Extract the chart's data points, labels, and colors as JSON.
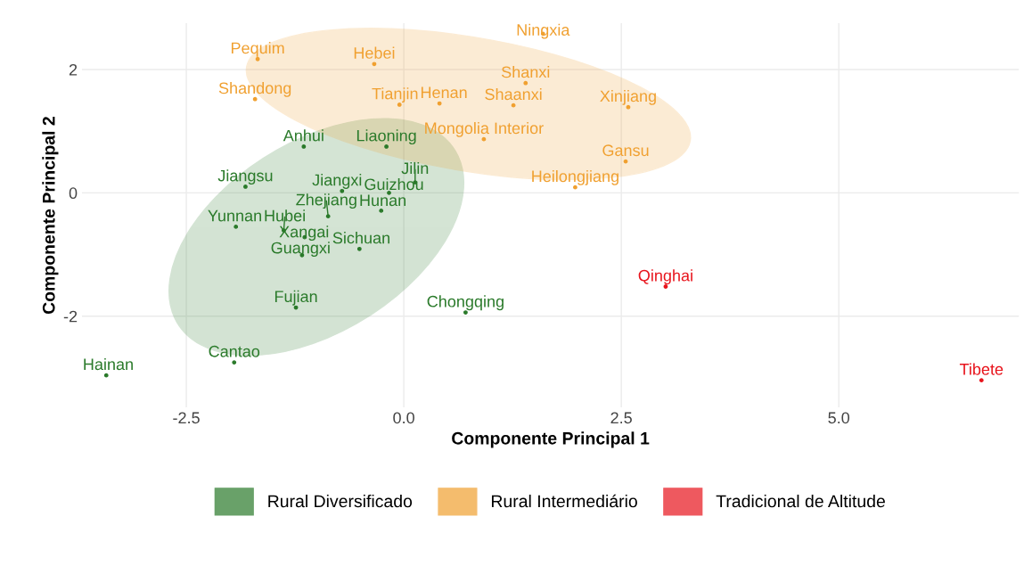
{
  "chart_data": {
    "type": "scatter",
    "xlabel": "Componente Principal 1",
    "ylabel": "Componente Principal 2",
    "xlim": [
      -3.7,
      7.07
    ],
    "ylim": [
      -3.48,
      2.75
    ],
    "xticks": [
      {
        "value": -2.5,
        "label": "-2.5"
      },
      {
        "value": 0,
        "label": "0.0"
      },
      {
        "value": 2.5,
        "label": "2.5"
      },
      {
        "value": 5,
        "label": "5.0"
      }
    ],
    "yticks": [
      -2,
      0,
      2
    ],
    "grid": true,
    "legend": "bottom",
    "marker": "circle",
    "series": [
      {
        "name": "Rural Diversificado",
        "color": "#2a7a2a",
        "x": [
          -0.71,
          -1.15,
          -0.2,
          -1.82,
          -0.17,
          0.13,
          -0.87,
          -0.26,
          -1.93,
          -1.38,
          -1.14,
          -0.51,
          -1.17,
          -1.24,
          0.71,
          -1.95,
          -3.42
        ],
        "values": [
          0.03,
          0.75,
          0.75,
          0.1,
          0.0,
          0.17,
          -0.38,
          -0.29,
          -0.55,
          -0.61,
          -0.72,
          -0.91,
          -1.01,
          -1.86,
          -1.94,
          -2.75,
          -2.96
        ],
        "value_labels": [
          "Jiangxi",
          "Anhui",
          "Liaoning",
          "Jiangsu",
          "Guizhou",
          "Jilin",
          "Zhejiang",
          "Hunan",
          "Yunnan",
          "Hubei",
          "Xangai",
          "Sichuan",
          "Guangxi",
          "Fujian",
          "Chongqing",
          "Cantao",
          "Hainan"
        ]
      },
      {
        "name": "Rural Intermediário",
        "color": "#f0a030",
        "x": [
          -1.68,
          -0.34,
          1.4,
          1.6,
          -1.71,
          -0.05,
          0.41,
          1.26,
          2.58,
          0.92,
          1.97,
          2.55
        ],
        "values": [
          2.17,
          2.09,
          1.78,
          2.58,
          1.52,
          1.43,
          1.45,
          1.42,
          1.39,
          0.87,
          0.09,
          0.51
        ],
        "value_labels": [
          "Pequim",
          "Hebei",
          "Shanxi",
          "Ningxia",
          "Shandong",
          "Tianjin",
          "Henan",
          "Shaanxi",
          "Xinjiang",
          "Mongolia Interior",
          "Heilongjiang",
          "Gansu"
        ]
      },
      {
        "name": "Tradicional de Altitude",
        "color": "#e8141c",
        "x": [
          3.01,
          6.64
        ],
        "values": [
          -1.52,
          -3.04
        ],
        "value_labels": [
          "Qinghai",
          "Tibete"
        ]
      }
    ]
  }
}
